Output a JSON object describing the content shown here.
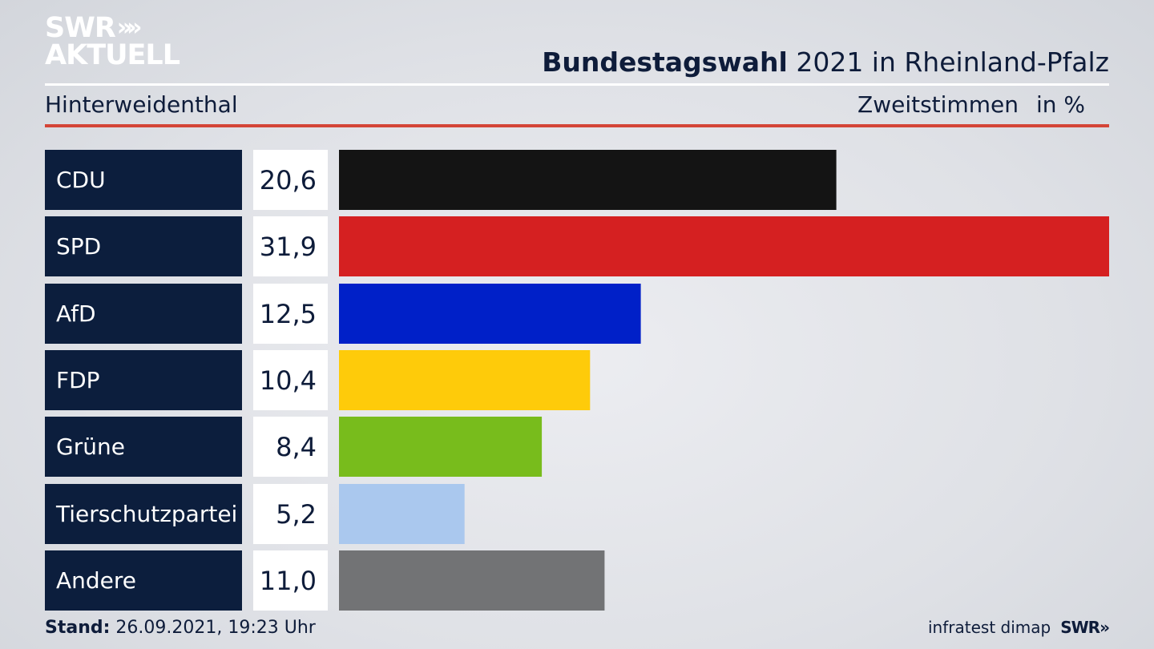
{
  "brand": {
    "logo_line1": "SWR",
    "logo_arrows": "»»",
    "logo_line2": "AKTUELL"
  },
  "header": {
    "title_bold": "Bundestagswahl",
    "title_rest": " 2021 in Rheinland-Pfalz",
    "place": "Hinterweidenthal",
    "measure": "Zweitstimmen",
    "unit": "in %"
  },
  "chart_data": {
    "type": "bar",
    "orientation": "horizontal",
    "categories": [
      "CDU",
      "SPD",
      "AfD",
      "FDP",
      "Grüne",
      "Tierschutzpartei",
      "Andere"
    ],
    "values": [
      20.6,
      31.9,
      12.5,
      10.4,
      8.4,
      5.2,
      11.0
    ],
    "labels": [
      "20,6",
      "31,9",
      "12,5",
      "10,4",
      "8,4",
      "5,2",
      "11,0"
    ],
    "colors": [
      "#141414",
      "#d52021",
      "#0020c8",
      "#fecb0a",
      "#78bc1c",
      "#aac8ee",
      "#727375"
    ],
    "xlim": [
      0,
      31.9
    ],
    "grid": false,
    "legend": "none"
  },
  "footer": {
    "stand_label": "Stand:",
    "stand_value": " 26.09.2021, 19:23 Uhr",
    "source": "infratest dimap",
    "source_logo": "SWR»"
  }
}
